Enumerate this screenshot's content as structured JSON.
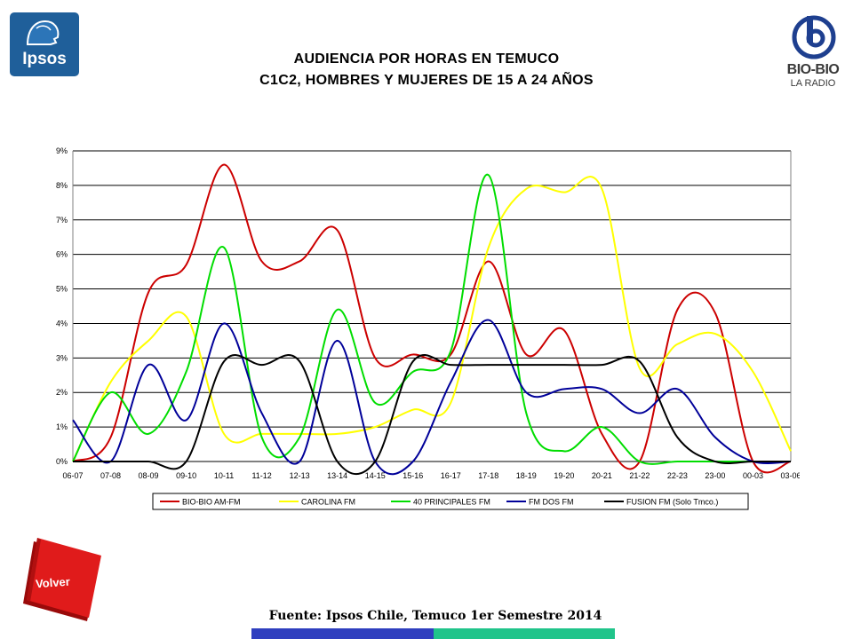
{
  "header": {
    "title_line1": "AUDIENCIA POR HORAS EN TEMUCO",
    "title_line2": "C1C2, HOMBRES Y MUJERES DE 15 A 24 AÑOS",
    "left_logo_text": "Ipsos",
    "right_logo_text": "BIO-BIO",
    "right_logo_sub": "LA RADIO"
  },
  "footer": {
    "source": "Fuente: Ipsos Chile, Temuco 1er Semestre 2014",
    "back_button": "Volver"
  },
  "colors": {
    "ipsos_blue": "#1f5f9a",
    "volver_red": "#e01b1b",
    "bar_blue": "#2f3fbf",
    "bar_teal": "#20c48a"
  },
  "chart_data": {
    "type": "line",
    "categories": [
      "06-07",
      "07-08",
      "08-09",
      "09-10",
      "10-11",
      "11-12",
      "12-13",
      "13-14",
      "14-15",
      "15-16",
      "16-17",
      "17-18",
      "18-19",
      "19-20",
      "20-21",
      "21-22",
      "22-23",
      "23-00",
      "00-03",
      "03-06"
    ],
    "y_ticks": [
      "0%",
      "1%",
      "2%",
      "3%",
      "4%",
      "5%",
      "6%",
      "7%",
      "8%",
      "9%"
    ],
    "ylim": [
      0,
      9
    ],
    "grid": true,
    "legend_position": "bottom",
    "series": [
      {
        "name": "BIO-BIO AM-FM",
        "color": "#cc0000",
        "values": [
          0,
          0.7,
          4.9,
          5.7,
          8.6,
          5.8,
          5.8,
          6.7,
          3.0,
          3.1,
          3.1,
          5.8,
          3.1,
          3.8,
          0.8,
          0,
          4.4,
          4.3,
          0,
          0
        ]
      },
      {
        "name": "CAROLINA FM",
        "color": "#ffff00",
        "values": [
          0,
          2.3,
          3.5,
          4.2,
          0.8,
          0.8,
          0.8,
          0.8,
          1.0,
          1.5,
          1.7,
          6.2,
          7.9,
          7.8,
          7.9,
          2.7,
          3.4,
          3.7,
          2.6,
          0.3
        ]
      },
      {
        "name": "40 PRINCIPALES FM",
        "color": "#00dd00",
        "values": [
          0,
          2.0,
          0.8,
          2.6,
          6.2,
          0.7,
          0.7,
          4.4,
          1.7,
          2.6,
          3.2,
          8.3,
          1.4,
          0.3,
          1.0,
          0,
          0,
          0,
          0,
          0
        ]
      },
      {
        "name": "FM DOS FM",
        "color": "#000099",
        "values": [
          1.2,
          0,
          2.8,
          1.2,
          4.0,
          1.4,
          0,
          3.5,
          0,
          0,
          2.3,
          4.1,
          2.0,
          2.1,
          2.1,
          1.4,
          2.1,
          0.7,
          0,
          0
        ]
      },
      {
        "name": "FUSION FM  (Solo Tmco.)",
        "color": "#000000",
        "values": [
          0,
          0,
          0,
          0,
          2.9,
          2.8,
          2.9,
          0,
          0,
          2.9,
          2.8,
          2.8,
          2.8,
          2.8,
          2.8,
          2.9,
          0.7,
          0,
          0,
          0
        ]
      }
    ]
  }
}
